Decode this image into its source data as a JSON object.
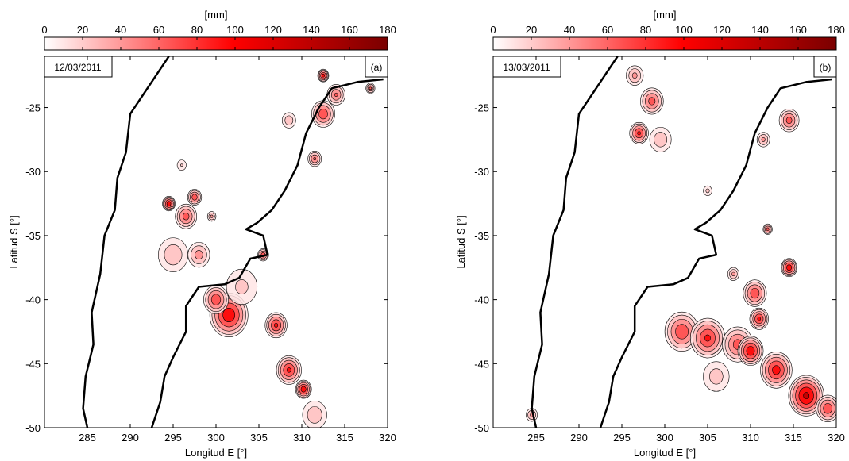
{
  "chart_data": [
    {
      "type": "heatmap",
      "panel_label": "(a)",
      "date": "12/03/2011",
      "colorbar": {
        "unit_label": "[mm]",
        "range": [
          0,
          180
        ],
        "ticks": [
          0,
          20,
          40,
          60,
          80,
          100,
          120,
          140,
          160,
          180
        ],
        "colors": [
          "#ffffff",
          "#ff0000",
          "#7a0000"
        ]
      },
      "xlabel": "Longitud E [°]",
      "ylabel": "Latitud S [°]",
      "xlim": [
        280,
        320
      ],
      "ylim": [
        -50,
        -21
      ],
      "xticks": [
        285,
        290,
        295,
        300,
        305,
        310,
        315,
        320
      ],
      "yticks": [
        -25,
        -30,
        -35,
        -40,
        -45,
        -50
      ],
      "precip_cells": [
        {
          "lon": 294.5,
          "lat": -32.5,
          "r": 0.8,
          "mm": 120
        },
        {
          "lon": 296.5,
          "lat": -33.5,
          "r": 1.4,
          "mm": 80
        },
        {
          "lon": 297.5,
          "lat": -32.0,
          "r": 0.9,
          "mm": 90
        },
        {
          "lon": 295.0,
          "lat": -36.5,
          "r": 2.2,
          "mm": 40
        },
        {
          "lon": 298.0,
          "lat": -36.5,
          "r": 1.5,
          "mm": 55
        },
        {
          "lon": 301.5,
          "lat": -41.2,
          "r": 2.4,
          "mm": 120
        },
        {
          "lon": 300.0,
          "lat": -40.0,
          "r": 1.6,
          "mm": 90
        },
        {
          "lon": 303.0,
          "lat": -39.0,
          "r": 2.5,
          "mm": 30
        },
        {
          "lon": 305.5,
          "lat": -36.5,
          "r": 0.7,
          "mm": 90
        },
        {
          "lon": 307.0,
          "lat": -42.0,
          "r": 1.4,
          "mm": 100
        },
        {
          "lon": 308.5,
          "lat": -45.5,
          "r": 1.6,
          "mm": 100
        },
        {
          "lon": 310.2,
          "lat": -47.0,
          "r": 1.0,
          "mm": 120
        },
        {
          "lon": 311.5,
          "lat": -49.0,
          "r": 1.8,
          "mm": 40
        },
        {
          "lon": 312.5,
          "lat": -25.5,
          "r": 1.5,
          "mm": 90
        },
        {
          "lon": 314.0,
          "lat": -24.0,
          "r": 1.2,
          "mm": 70
        },
        {
          "lon": 311.5,
          "lat": -29.0,
          "r": 0.9,
          "mm": 70
        },
        {
          "lon": 308.5,
          "lat": -26.0,
          "r": 1.0,
          "mm": 40
        },
        {
          "lon": 312.5,
          "lat": -22.5,
          "r": 0.7,
          "mm": 110
        },
        {
          "lon": 318.0,
          "lat": -23.5,
          "r": 0.6,
          "mm": 70
        },
        {
          "lon": 299.5,
          "lat": -33.5,
          "r": 0.6,
          "mm": 50
        },
        {
          "lon": 296.0,
          "lat": -29.5,
          "r": 0.8,
          "mm": 25
        }
      ]
    },
    {
      "type": "heatmap",
      "panel_label": "(b)",
      "date": "13/03/2011",
      "colorbar": {
        "unit_label": "[mm]",
        "range": [
          0,
          180
        ],
        "ticks": [
          0,
          20,
          40,
          60,
          80,
          100,
          120,
          140,
          160,
          180
        ],
        "colors": [
          "#ffffff",
          "#ff0000",
          "#7a0000"
        ]
      },
      "xlabel": "Longitud E [°]",
      "ylabel": "Latitud S [°]",
      "xlim": [
        280,
        320
      ],
      "ylim": [
        -50,
        -21
      ],
      "xticks": [
        285,
        290,
        295,
        300,
        305,
        310,
        315,
        320
      ],
      "yticks": [
        -25,
        -30,
        -35,
        -40,
        -45,
        -50
      ],
      "precip_cells": [
        {
          "lon": 297.0,
          "lat": -27.0,
          "r": 1.2,
          "mm": 100
        },
        {
          "lon": 298.5,
          "lat": -24.5,
          "r": 1.5,
          "mm": 80
        },
        {
          "lon": 296.5,
          "lat": -22.5,
          "r": 1.2,
          "mm": 50
        },
        {
          "lon": 299.5,
          "lat": -27.5,
          "r": 1.6,
          "mm": 40
        },
        {
          "lon": 314.5,
          "lat": -26.0,
          "r": 1.3,
          "mm": 80
        },
        {
          "lon": 311.5,
          "lat": -27.5,
          "r": 0.9,
          "mm": 50
        },
        {
          "lon": 302.0,
          "lat": -42.5,
          "r": 2.2,
          "mm": 90
        },
        {
          "lon": 305.0,
          "lat": -43.0,
          "r": 2.2,
          "mm": 100
        },
        {
          "lon": 308.5,
          "lat": -43.5,
          "r": 2.0,
          "mm": 80
        },
        {
          "lon": 310.0,
          "lat": -44.0,
          "r": 1.6,
          "mm": 120
        },
        {
          "lon": 313.0,
          "lat": -45.5,
          "r": 2.0,
          "mm": 110
        },
        {
          "lon": 316.5,
          "lat": -47.5,
          "r": 2.2,
          "mm": 140
        },
        {
          "lon": 319.0,
          "lat": -48.5,
          "r": 1.5,
          "mm": 90
        },
        {
          "lon": 306.0,
          "lat": -46.0,
          "r": 2.0,
          "mm": 35
        },
        {
          "lon": 310.5,
          "lat": -39.5,
          "r": 1.5,
          "mm": 90
        },
        {
          "lon": 311.0,
          "lat": -41.5,
          "r": 1.2,
          "mm": 100
        },
        {
          "lon": 314.5,
          "lat": -37.5,
          "r": 1.0,
          "mm": 120
        },
        {
          "lon": 312.0,
          "lat": -34.5,
          "r": 0.6,
          "mm": 80
        },
        {
          "lon": 308.0,
          "lat": -38.0,
          "r": 0.8,
          "mm": 50
        },
        {
          "lon": 305.0,
          "lat": -31.5,
          "r": 0.7,
          "mm": 30
        },
        {
          "lon": 284.5,
          "lat": -49.0,
          "r": 0.8,
          "mm": 50
        }
      ]
    }
  ],
  "coastline_lonlat": {
    "pacific": [
      [
        294.5,
        -21.0
      ],
      [
        293.0,
        -22.5
      ],
      [
        290.0,
        -25.5
      ],
      [
        289.5,
        -28.5
      ],
      [
        288.5,
        -30.5
      ],
      [
        288.2,
        -33.0
      ],
      [
        287.0,
        -35.0
      ],
      [
        286.5,
        -38.0
      ],
      [
        285.5,
        -41.0
      ],
      [
        285.7,
        -43.5
      ],
      [
        284.8,
        -46.0
      ],
      [
        284.5,
        -48.5
      ],
      [
        285.0,
        -50.0
      ]
    ],
    "atlantic": [
      [
        319.5,
        -22.8
      ],
      [
        316.5,
        -23.0
      ],
      [
        313.5,
        -23.5
      ],
      [
        312.0,
        -25.0
      ],
      [
        310.5,
        -27.0
      ],
      [
        309.5,
        -29.5
      ],
      [
        308.0,
        -31.5
      ],
      [
        306.5,
        -33.0
      ],
      [
        304.8,
        -34.0
      ],
      [
        303.5,
        -34.5
      ],
      [
        305.5,
        -35.0
      ],
      [
        306.0,
        -36.5
      ],
      [
        304.0,
        -36.8
      ],
      [
        302.7,
        -38.3
      ],
      [
        301.0,
        -38.8
      ],
      [
        298.0,
        -39.0
      ],
      [
        296.5,
        -40.5
      ],
      [
        296.5,
        -42.5
      ],
      [
        295.0,
        -44.5
      ],
      [
        294.0,
        -46.0
      ],
      [
        293.5,
        -48.0
      ],
      [
        292.5,
        -50.0
      ]
    ]
  }
}
